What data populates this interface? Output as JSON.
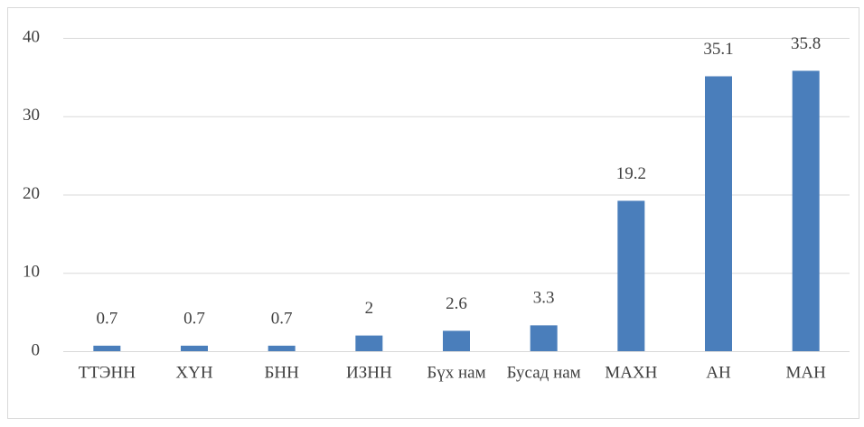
{
  "chart_data": {
    "type": "bar",
    "categories": [
      "ТТЭНН",
      "ХҮН",
      "БНН",
      "ИЗНН",
      "Бүх нам",
      "Бусад нам",
      "МАХН",
      "АН",
      "МАН"
    ],
    "values": [
      0.7,
      0.7,
      0.7,
      2,
      2.6,
      3.3,
      19.2,
      35.1,
      35.8
    ],
    "color": "#4a7ebb",
    "ylim": [
      0,
      40
    ],
    "yticks": [
      0,
      10,
      20,
      30,
      40
    ],
    "grid": true
  }
}
